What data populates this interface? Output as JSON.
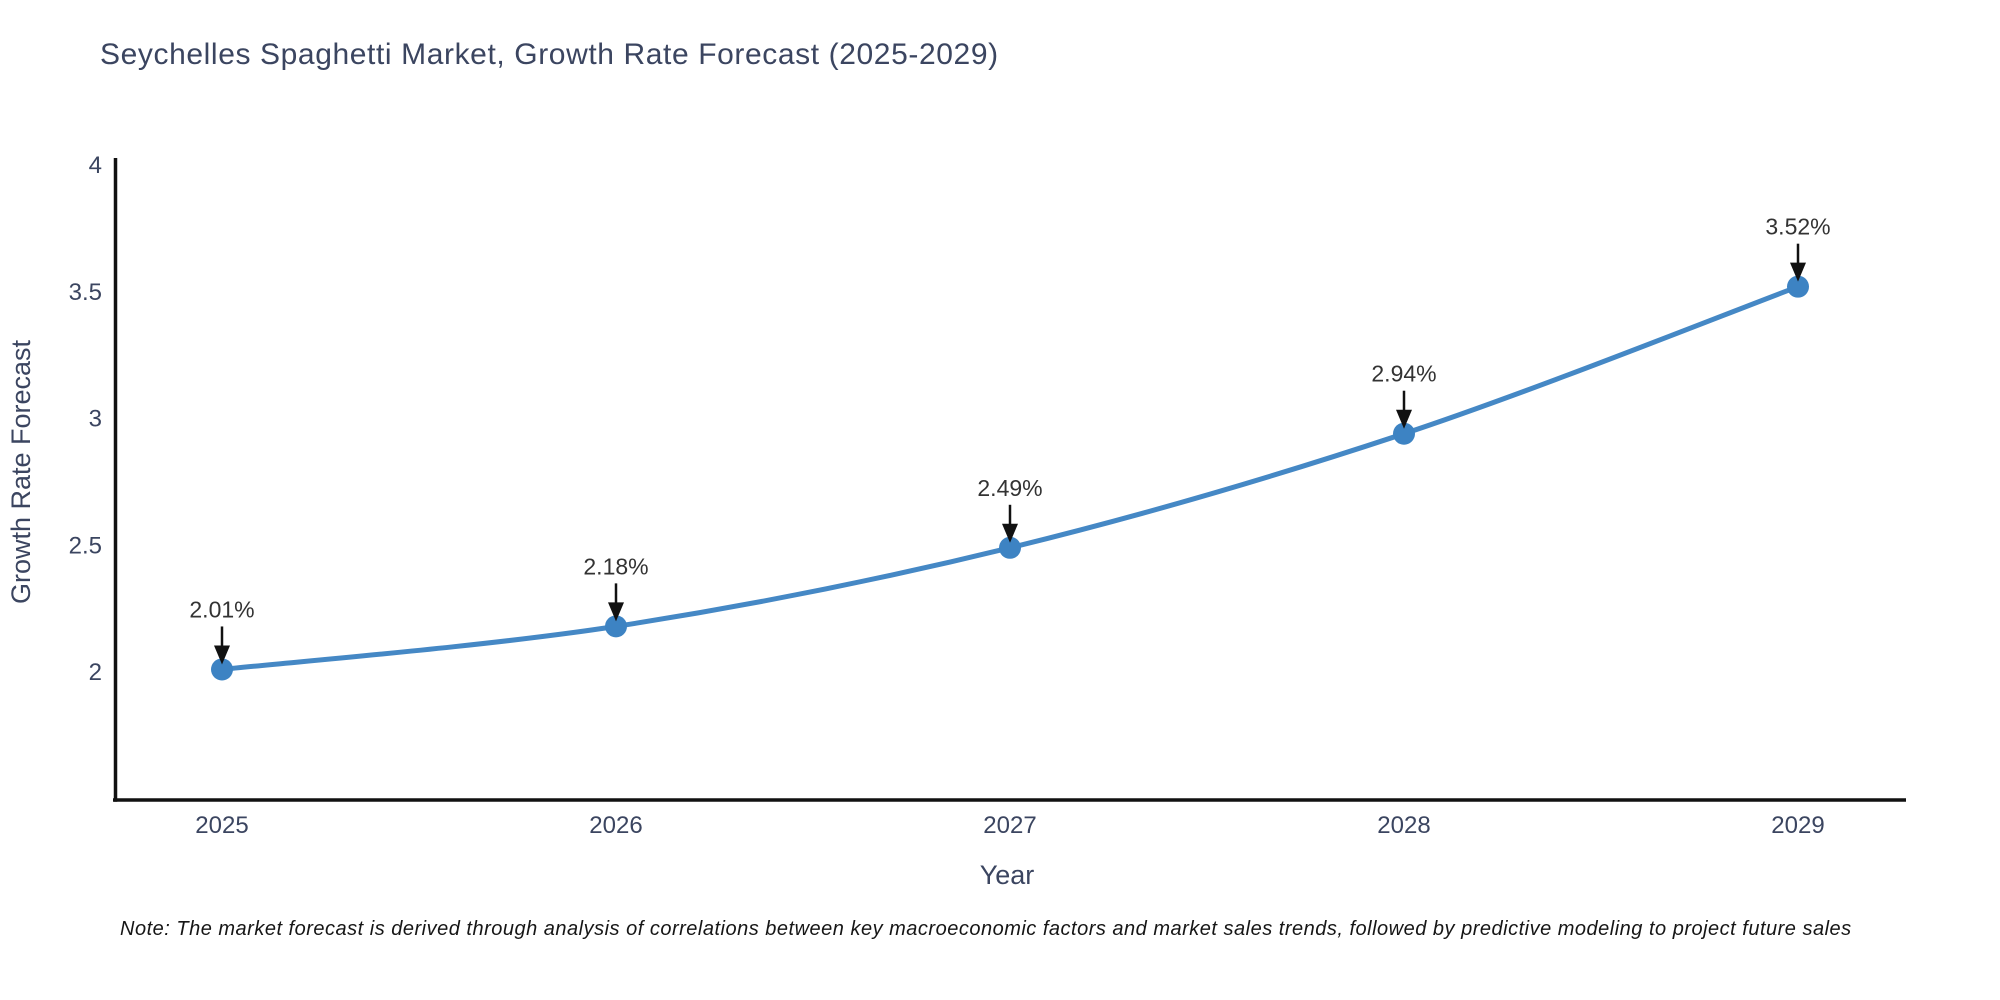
{
  "title": "Seychelles Spaghetti Market, Growth Rate Forecast (2025-2029)",
  "note": "Note: The market forecast is derived through analysis of correlations between key macroeconomic factors and market sales trends, followed by predictive modeling to project future sales",
  "chart_data": {
    "type": "line",
    "title": "Seychelles Spaghetti Market, Growth Rate Forecast (2025-2029)",
    "xlabel": "Year",
    "ylabel": "Growth Rate Forecast",
    "categories": [
      "2025",
      "2026",
      "2027",
      "2028",
      "2029"
    ],
    "values": [
      2.01,
      2.18,
      2.49,
      2.94,
      3.52
    ],
    "point_labels": [
      "2.01%",
      "2.18%",
      "2.49%",
      "2.94%",
      "3.52%"
    ],
    "yticks": [
      2,
      2.5,
      3,
      3.5,
      4
    ],
    "ytick_labels": [
      "2",
      "2.5",
      "3",
      "3.5",
      "4"
    ],
    "ylim": [
      1.5,
      4.05
    ],
    "grid": false,
    "legend": "none",
    "colors": {
      "line": "#4588c5",
      "marker": "#3d83c3",
      "axis": "#111111",
      "arrow": "#111111",
      "tick_text": "#3b4560",
      "title_text": "#3b4560",
      "annotation_text": "#333333"
    }
  }
}
